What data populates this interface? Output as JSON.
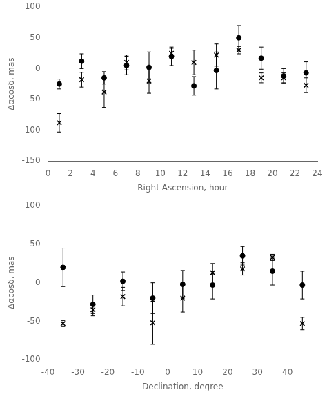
{
  "chart_data": [
    {
      "type": "scatter",
      "xlabel": "Right Ascension, hour",
      "ylabel": "Δαcosδ, mas",
      "xlim": [
        0,
        24
      ],
      "ylim": [
        -150,
        100
      ],
      "xticks": [
        0,
        2,
        4,
        6,
        8,
        10,
        12,
        14,
        16,
        18,
        20,
        22,
        24
      ],
      "yticks": [
        -150,
        -100,
        -50,
        0,
        50,
        100
      ],
      "grid": false,
      "series": [
        {
          "marker": "x",
          "color": "black",
          "x": [
            1,
            3,
            5,
            7,
            9,
            11,
            13,
            15,
            17,
            19,
            21,
            23
          ],
          "values": [
            -88,
            -18,
            -38,
            10,
            -20,
            25,
            10,
            22,
            30,
            -15,
            -15,
            -27
          ],
          "yerr_low": [
            15,
            12,
            25,
            12,
            20,
            8,
            20,
            18,
            6,
            8,
            8,
            12
          ],
          "yerr_high": [
            15,
            12,
            25,
            12,
            20,
            8,
            20,
            18,
            6,
            8,
            8,
            12
          ]
        },
        {
          "marker": "o",
          "color": "black",
          "x": [
            1,
            3,
            5,
            7,
            9,
            11,
            13,
            15,
            17,
            19,
            21,
            23
          ],
          "values": [
            -25,
            12,
            -15,
            5,
            2,
            20,
            -28,
            -3,
            50,
            17,
            -12,
            -7
          ],
          "yerr_low": [
            8,
            12,
            10,
            15,
            25,
            15,
            15,
            30,
            20,
            18,
            12,
            18
          ],
          "yerr_high": [
            8,
            12,
            10,
            15,
            25,
            15,
            15,
            30,
            20,
            18,
            12,
            18
          ]
        }
      ]
    },
    {
      "type": "scatter",
      "xlabel": "Declination, degree",
      "ylabel": "Δαcosδ, mas",
      "xlim": [
        -40,
        50
      ],
      "ylim": [
        -100,
        100
      ],
      "xticks": [
        -40,
        -30,
        -20,
        -10,
        0,
        10,
        20,
        30,
        40
      ],
      "yticks": [
        -100,
        -50,
        0,
        50,
        100
      ],
      "grid": false,
      "series": [
        {
          "marker": "x",
          "color": "black",
          "x": [
            -35,
            -25,
            -15,
            -5,
            5,
            15,
            25,
            35,
            45
          ],
          "values": [
            -53,
            -35,
            -18,
            -52,
            -20,
            13,
            18,
            33,
            -53
          ],
          "yerr_low": [
            4,
            8,
            12,
            28,
            18,
            12,
            8,
            4,
            8
          ],
          "yerr_high": [
            4,
            8,
            12,
            28,
            18,
            12,
            8,
            4,
            8
          ]
        },
        {
          "marker": "o",
          "color": "black",
          "x": [
            -35,
            -25,
            -15,
            -5,
            5,
            15,
            25,
            35,
            45
          ],
          "values": [
            20,
            -28,
            2,
            -20,
            -2,
            -3,
            35,
            15,
            -3
          ],
          "yerr_low": [
            25,
            12,
            12,
            20,
            18,
            18,
            12,
            18,
            18
          ],
          "yerr_high": [
            25,
            12,
            12,
            20,
            18,
            18,
            12,
            18,
            18
          ]
        }
      ]
    }
  ]
}
